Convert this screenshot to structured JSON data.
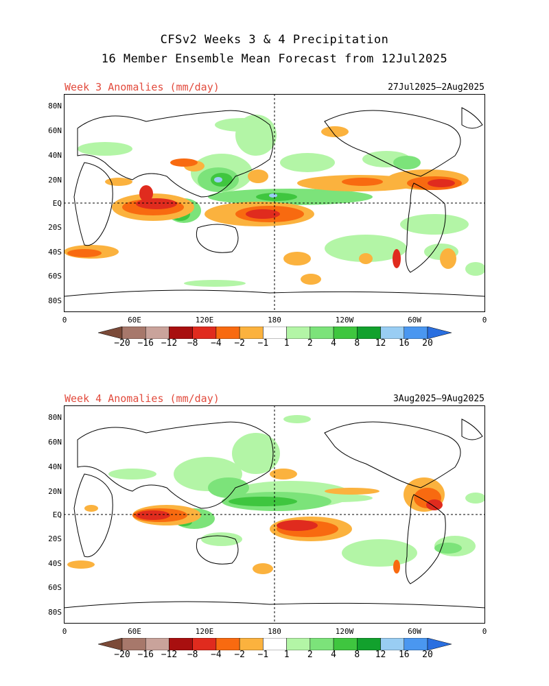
{
  "header": {
    "line1": "CFSv2 Weeks 3 & 4 Precipitation",
    "line2": "16 Member Ensemble Mean Forecast from 12Jul2025"
  },
  "panels": [
    {
      "label": "Week 3 Anomalies (mm/day)",
      "date_range": "27Jul2025–2Aug2025"
    },
    {
      "label": "Week 4 Anomalies (mm/day)",
      "date_range": "3Aug2025–9Aug2025"
    }
  ],
  "axes": {
    "lat_labels": [
      "80N",
      "60N",
      "40N",
      "20N",
      "EQ",
      "20S",
      "40S",
      "60S",
      "80S"
    ],
    "lon_labels": [
      "0",
      "60E",
      "120E",
      "180",
      "120W",
      "60W",
      "0"
    ]
  },
  "colorbar": {
    "labels": [
      "−20",
      "−16",
      "−12",
      "−8",
      "−4",
      "−2",
      "−1",
      "1",
      "2",
      "4",
      "8",
      "12",
      "16",
      "20"
    ],
    "colors": [
      "#7b4a38",
      "#a7786b",
      "#c9a39b",
      "#a80f0f",
      "#e02b1e",
      "#f86a10",
      "#fbb23e",
      "#ffffff",
      "#b3f5a6",
      "#7ce37a",
      "#3fc63f",
      "#12a12d",
      "#99cdf3",
      "#4a97f0",
      "#2a6fe0"
    ]
  },
  "anomaly_colors": {
    "dry_strong": "#e02b1e",
    "dry_moderate": "#f86a10",
    "dry_weak": "#fbb23e",
    "wet_weak": "#b3f5a6",
    "wet_moderate": "#7ce37a",
    "wet_strong": "#3fc63f",
    "wet_very_strong": "#99cdf3"
  }
}
